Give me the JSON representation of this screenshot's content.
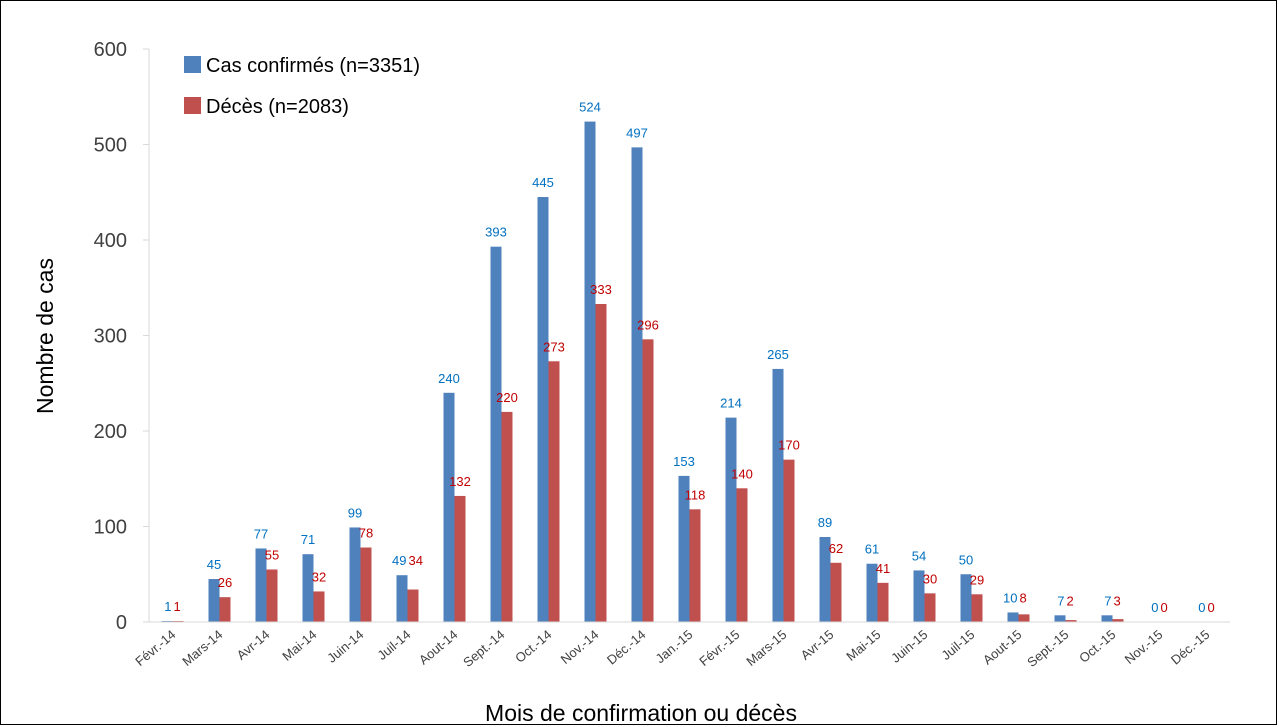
{
  "chart_data": {
    "type": "bar",
    "xlabel": "Mois de confirmation ou décès",
    "ylabel": "Nombre de cas",
    "ylim": [
      0,
      600
    ],
    "yticks": [
      "0",
      "100",
      "200",
      "300",
      "400",
      "500",
      "600"
    ],
    "grid": false,
    "legend_position": "top-left",
    "categories": [
      "Févr.-14",
      "Mars-14",
      "Avr-14",
      "Mai-14",
      "Juin-14",
      "Juil-14",
      "Aout-14",
      "Sept.-14",
      "Oct.-14",
      "Nov.-14",
      "Déc.-14",
      "Jan.-15",
      "Févr.-15",
      "Mars-15",
      "Avr-15",
      "Mai-15",
      "Juin-15",
      "Juil-15",
      "Aout-15",
      "Sept.-15",
      "Oct.-15",
      "Nov.-15",
      "Déc.-15"
    ],
    "series": [
      {
        "name": "Cas confirmés (n=3351)",
        "color": "#4f81bd",
        "label_color": "#0070c0",
        "values": [
          1,
          45,
          77,
          71,
          99,
          49,
          240,
          393,
          445,
          524,
          497,
          153,
          214,
          265,
          89,
          61,
          54,
          50,
          10,
          7,
          7,
          0,
          0
        ]
      },
      {
        "name": "Décès (n=2083)",
        "color": "#c0504d",
        "label_color": "#c00000",
        "values": [
          1,
          26,
          55,
          32,
          78,
          34,
          132,
          220,
          273,
          333,
          296,
          118,
          140,
          170,
          62,
          41,
          30,
          29,
          8,
          2,
          3,
          0,
          0
        ]
      }
    ]
  }
}
